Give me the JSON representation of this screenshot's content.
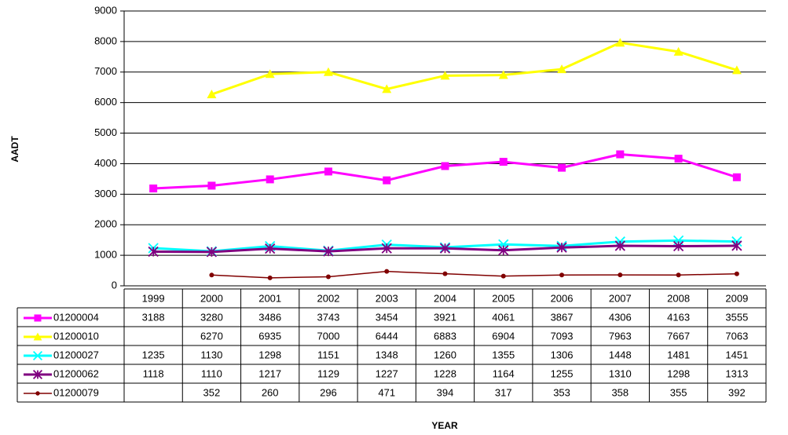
{
  "chart_data": {
    "type": "line",
    "y_label": "AADT",
    "x_label": "YEAR",
    "categories": [
      "1999",
      "2000",
      "2001",
      "2002",
      "2003",
      "2004",
      "2005",
      "2006",
      "2007",
      "2008",
      "2009"
    ],
    "series": [
      {
        "name": "01200004",
        "color": "#ff00ff",
        "marker": "square",
        "values": [
          3188,
          3280,
          3486,
          3743,
          3454,
          3921,
          4061,
          3867,
          4306,
          4163,
          3555
        ]
      },
      {
        "name": "01200010",
        "color": "#ffff00",
        "marker": "triangle",
        "values": [
          null,
          6270,
          6935,
          7000,
          6444,
          6883,
          6904,
          7093,
          7963,
          7667,
          7063
        ]
      },
      {
        "name": "01200027",
        "color": "#00ffff",
        "marker": "star",
        "values": [
          1235,
          1130,
          1298,
          1151,
          1348,
          1260,
          1355,
          1306,
          1448,
          1481,
          1451
        ]
      },
      {
        "name": "01200062",
        "color": "#800080",
        "marker": "asterisk",
        "values": [
          1118,
          1110,
          1217,
          1129,
          1227,
          1228,
          1164,
          1255,
          1310,
          1298,
          1313
        ]
      },
      {
        "name": "01200079",
        "color": "#800000",
        "marker": "circle",
        "values": [
          null,
          352,
          260,
          296,
          471,
          394,
          317,
          353,
          358,
          355,
          392
        ]
      }
    ],
    "ylim": [
      0,
      9000
    ],
    "yticks": [
      0,
      1000,
      2000,
      3000,
      4000,
      5000,
      6000,
      7000,
      8000,
      9000
    ],
    "grid": true
  }
}
